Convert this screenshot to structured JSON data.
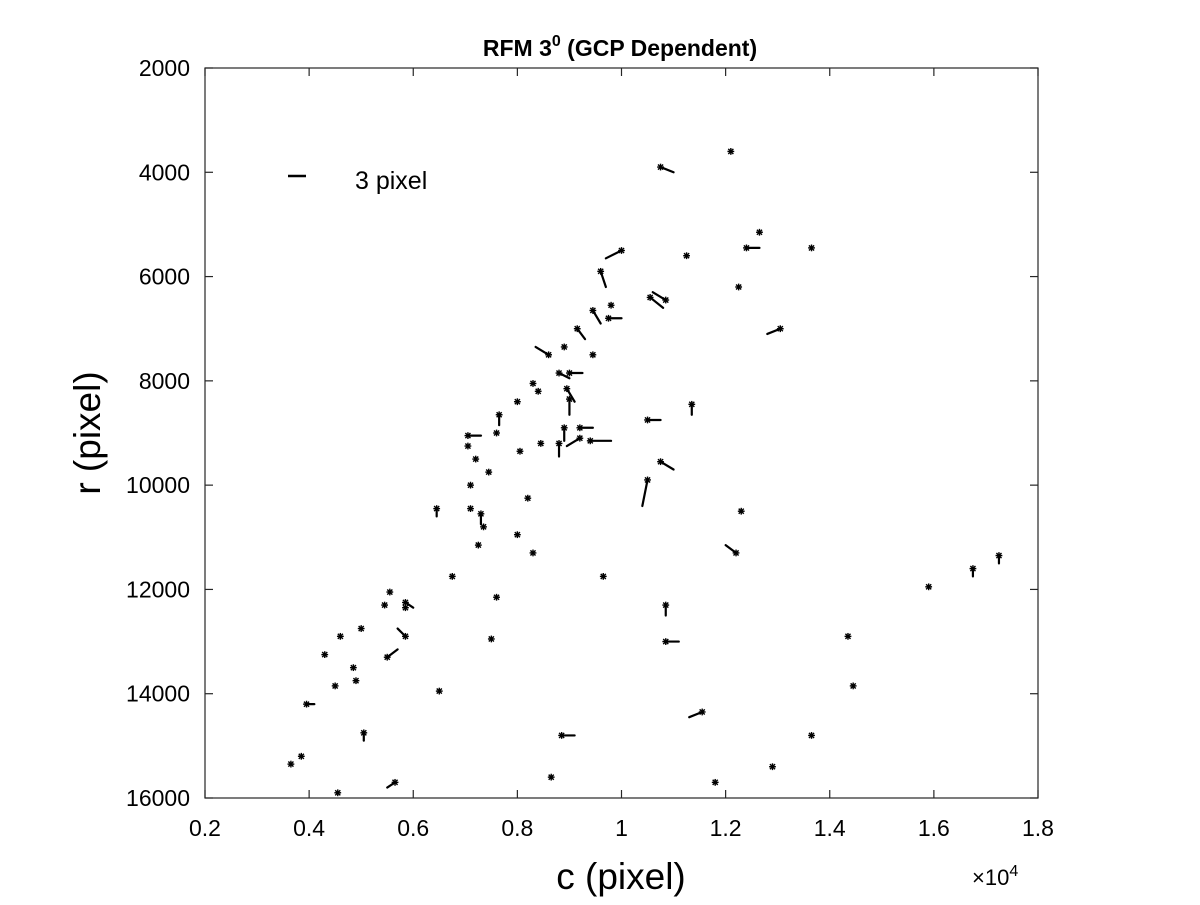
{
  "chart_data": {
    "type": "scatter",
    "title_main": "RFM 3",
    "title_sup": "0",
    "title_rest": " (GCP Dependent)",
    "xlabel": "c (pixel)",
    "ylabel": "r (pixel)",
    "xlim": [
      2000,
      18000
    ],
    "ylim": [
      2000,
      16000
    ],
    "y_reversed": true,
    "x_ticks": [
      2000,
      4000,
      6000,
      8000,
      10000,
      12000,
      14000,
      16000,
      18000
    ],
    "x_tick_labels": [
      "0.2",
      "0.4",
      "0.6",
      "0.8",
      "1",
      "1.2",
      "1.4",
      "1.6",
      "1.8"
    ],
    "y_ticks": [
      2000,
      4000,
      6000,
      8000,
      10000,
      12000,
      14000,
      16000
    ],
    "y_tick_labels": [
      "2000",
      "4000",
      "6000",
      "8000",
      "10000",
      "12000",
      "14000",
      "16000"
    ],
    "x_exponent_label": {
      "base": "×10",
      "exp": "4"
    },
    "grid": false,
    "legend": {
      "label": "3 pixel",
      "placement": "top-left"
    },
    "marker_color": "#000000",
    "residual_scale_pixels_per_data_pixel": 500,
    "points": [
      {
        "c": 12100,
        "r": 3600,
        "dc": 0,
        "dr": 0
      },
      {
        "c": 10750,
        "r": 3900,
        "dc": 0.5,
        "dr": 0.2
      },
      {
        "c": 12650,
        "r": 5150,
        "dc": 0,
        "dr": 0
      },
      {
        "c": 12400,
        "r": 5450,
        "dc": 0.5,
        "dr": 0
      },
      {
        "c": 13650,
        "r": 5450,
        "dc": 0,
        "dr": 0
      },
      {
        "c": 10000,
        "r": 5500,
        "dc": -0.6,
        "dr": 0.3
      },
      {
        "c": 11250,
        "r": 5600,
        "dc": 0,
        "dr": 0
      },
      {
        "c": 9600,
        "r": 5900,
        "dc": 0.2,
        "dr": 0.6
      },
      {
        "c": 12250,
        "r": 6200,
        "dc": 0,
        "dr": 0
      },
      {
        "c": 10550,
        "r": 6400,
        "dc": 0.5,
        "dr": 0.4
      },
      {
        "c": 10850,
        "r": 6450,
        "dc": -0.5,
        "dr": -0.3
      },
      {
        "c": 9450,
        "r": 6650,
        "dc": 0.3,
        "dr": 0.5
      },
      {
        "c": 9800,
        "r": 6550,
        "dc": 0,
        "dr": 0
      },
      {
        "c": 9750,
        "r": 6800,
        "dc": 0.5,
        "dr": 0
      },
      {
        "c": 9150,
        "r": 7000,
        "dc": 0.3,
        "dr": 0.4
      },
      {
        "c": 13050,
        "r": 7000,
        "dc": -0.5,
        "dr": 0.2
      },
      {
        "c": 8900,
        "r": 7350,
        "dc": 0,
        "dr": 0
      },
      {
        "c": 8600,
        "r": 7500,
        "dc": -0.5,
        "dr": -0.3
      },
      {
        "c": 9450,
        "r": 7500,
        "dc": 0,
        "dr": 0
      },
      {
        "c": 8800,
        "r": 7850,
        "dc": 0.4,
        "dr": 0.2
      },
      {
        "c": 9000,
        "r": 7850,
        "dc": 0.5,
        "dr": 0
      },
      {
        "c": 8300,
        "r": 8050,
        "dc": 0,
        "dr": 0
      },
      {
        "c": 8400,
        "r": 8200,
        "dc": 0,
        "dr": 0
      },
      {
        "c": 8950,
        "r": 8150,
        "dc": 0.3,
        "dr": 0.5
      },
      {
        "c": 9000,
        "r": 8350,
        "dc": 0,
        "dr": 0.6
      },
      {
        "c": 8000,
        "r": 8400,
        "dc": 0,
        "dr": 0
      },
      {
        "c": 11350,
        "r": 8450,
        "dc": 0,
        "dr": 0.4
      },
      {
        "c": 7650,
        "r": 8650,
        "dc": 0,
        "dr": 0.4
      },
      {
        "c": 10500,
        "r": 8750,
        "dc": 0.5,
        "dr": 0
      },
      {
        "c": 8900,
        "r": 8900,
        "dc": 0,
        "dr": 0.5
      },
      {
        "c": 9200,
        "r": 8900,
        "dc": 0.5,
        "dr": 0
      },
      {
        "c": 7600,
        "r": 9000,
        "dc": 0,
        "dr": 0
      },
      {
        "c": 7050,
        "r": 9050,
        "dc": 0.5,
        "dr": 0
      },
      {
        "c": 9200,
        "r": 9100,
        "dc": -0.5,
        "dr": 0.3
      },
      {
        "c": 9400,
        "r": 9150,
        "dc": 0.8,
        "dr": 0
      },
      {
        "c": 8450,
        "r": 9200,
        "dc": 0,
        "dr": 0
      },
      {
        "c": 8800,
        "r": 9200,
        "dc": 0,
        "dr": 0.5
      },
      {
        "c": 7050,
        "r": 9250,
        "dc": 0,
        "dr": 0
      },
      {
        "c": 8050,
        "r": 9350,
        "dc": 0,
        "dr": 0
      },
      {
        "c": 7200,
        "r": 9500,
        "dc": 0,
        "dr": 0
      },
      {
        "c": 10750,
        "r": 9550,
        "dc": 0.5,
        "dr": 0.3
      },
      {
        "c": 7450,
        "r": 9750,
        "dc": 0,
        "dr": 0
      },
      {
        "c": 10500,
        "r": 9900,
        "dc": -0.2,
        "dr": 1.0
      },
      {
        "c": 7100,
        "r": 10000,
        "dc": 0,
        "dr": 0
      },
      {
        "c": 8200,
        "r": 10250,
        "dc": 0,
        "dr": 0
      },
      {
        "c": 6450,
        "r": 10450,
        "dc": 0,
        "dr": 0.3
      },
      {
        "c": 7100,
        "r": 10450,
        "dc": 0,
        "dr": 0
      },
      {
        "c": 7300,
        "r": 10550,
        "dc": 0,
        "dr": 0.4
      },
      {
        "c": 12300,
        "r": 10500,
        "dc": 0,
        "dr": 0
      },
      {
        "c": 7350,
        "r": 10800,
        "dc": 0,
        "dr": 0
      },
      {
        "c": 8000,
        "r": 10950,
        "dc": 0,
        "dr": 0
      },
      {
        "c": 7250,
        "r": 11150,
        "dc": 0,
        "dr": 0
      },
      {
        "c": 12200,
        "r": 11300,
        "dc": -0.4,
        "dr": -0.3
      },
      {
        "c": 8300,
        "r": 11300,
        "dc": 0,
        "dr": 0
      },
      {
        "c": 17250,
        "r": 11350,
        "dc": 0,
        "dr": 0.3
      },
      {
        "c": 16750,
        "r": 11600,
        "dc": 0,
        "dr": 0.3
      },
      {
        "c": 6750,
        "r": 11750,
        "dc": 0,
        "dr": 0
      },
      {
        "c": 9650,
        "r": 11750,
        "dc": 0,
        "dr": 0
      },
      {
        "c": 15900,
        "r": 11950,
        "dc": 0,
        "dr": 0
      },
      {
        "c": 5550,
        "r": 12050,
        "dc": 0,
        "dr": 0
      },
      {
        "c": 7600,
        "r": 12150,
        "dc": 0,
        "dr": 0
      },
      {
        "c": 5850,
        "r": 12250,
        "dc": 0.3,
        "dr": 0.2
      },
      {
        "c": 5850,
        "r": 12350,
        "dc": 0,
        "dr": 0
      },
      {
        "c": 5450,
        "r": 12300,
        "dc": 0,
        "dr": 0
      },
      {
        "c": 10850,
        "r": 12300,
        "dc": 0,
        "dr": 0.4
      },
      {
        "c": 5000,
        "r": 12750,
        "dc": 0,
        "dr": 0
      },
      {
        "c": 4600,
        "r": 12900,
        "dc": 0,
        "dr": 0
      },
      {
        "c": 5850,
        "r": 12900,
        "dc": -0.3,
        "dr": -0.3
      },
      {
        "c": 7500,
        "r": 12950,
        "dc": 0,
        "dr": 0
      },
      {
        "c": 14350,
        "r": 12900,
        "dc": 0,
        "dr": 0
      },
      {
        "c": 10850,
        "r": 13000,
        "dc": 0.5,
        "dr": 0
      },
      {
        "c": 4300,
        "r": 13250,
        "dc": 0,
        "dr": 0
      },
      {
        "c": 5500,
        "r": 13300,
        "dc": 0.4,
        "dr": -0.3
      },
      {
        "c": 4850,
        "r": 13500,
        "dc": 0,
        "dr": 0
      },
      {
        "c": 4900,
        "r": 13750,
        "dc": 0,
        "dr": 0
      },
      {
        "c": 4500,
        "r": 13850,
        "dc": 0,
        "dr": 0
      },
      {
        "c": 14450,
        "r": 13850,
        "dc": 0,
        "dr": 0
      },
      {
        "c": 6500,
        "r": 13950,
        "dc": 0,
        "dr": 0
      },
      {
        "c": 3950,
        "r": 14200,
        "dc": 0.3,
        "dr": 0
      },
      {
        "c": 11550,
        "r": 14350,
        "dc": -0.5,
        "dr": 0.2
      },
      {
        "c": 5050,
        "r": 14750,
        "dc": 0,
        "dr": 0.3
      },
      {
        "c": 8850,
        "r": 14800,
        "dc": 0.5,
        "dr": 0
      },
      {
        "c": 13650,
        "r": 14800,
        "dc": 0,
        "dr": 0
      },
      {
        "c": 3850,
        "r": 15200,
        "dc": 0,
        "dr": 0
      },
      {
        "c": 3650,
        "r": 15350,
        "dc": 0,
        "dr": 0
      },
      {
        "c": 12900,
        "r": 15400,
        "dc": 0,
        "dr": 0
      },
      {
        "c": 8650,
        "r": 15600,
        "dc": 0,
        "dr": 0
      },
      {
        "c": 5650,
        "r": 15700,
        "dc": -0.3,
        "dr": 0.2
      },
      {
        "c": 11800,
        "r": 15700,
        "dc": 0,
        "dr": 0
      },
      {
        "c": 4550,
        "r": 15900,
        "dc": 0,
        "dr": 0
      }
    ]
  }
}
